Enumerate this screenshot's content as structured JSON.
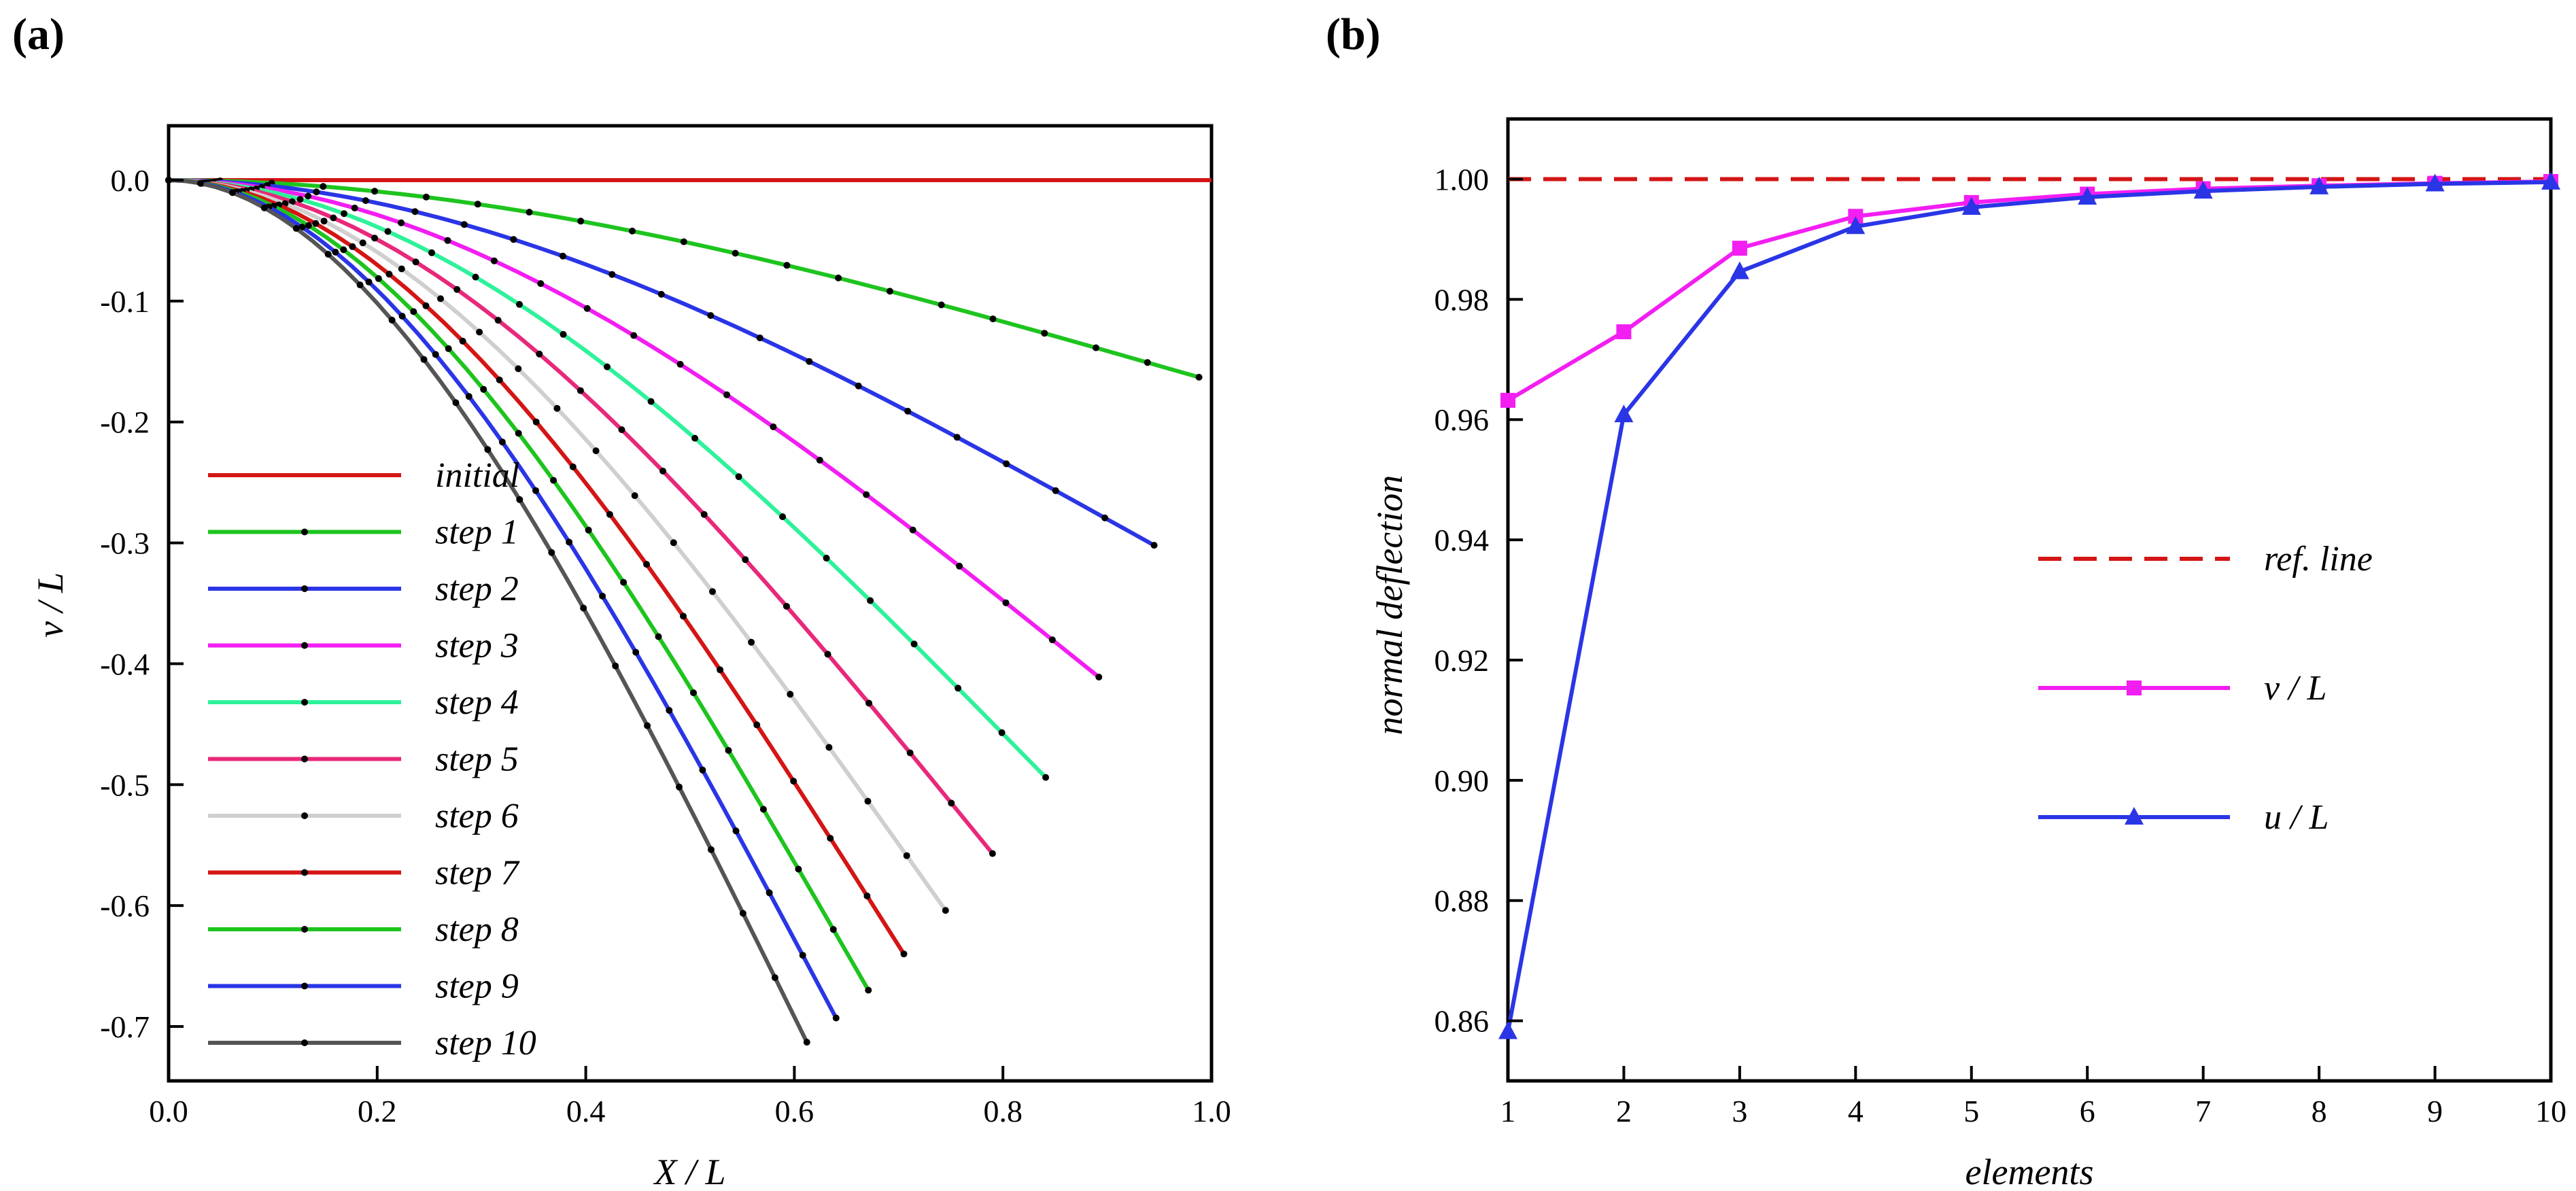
{
  "chart_data": [
    {
      "panel": "(a)",
      "type": "line",
      "xlabel": "X / L",
      "ylabel": "v / L",
      "xlim": [
        0.0,
        1.0
      ],
      "ylim": [
        -0.745,
        0.045
      ],
      "xticks": [
        "0.0",
        "0.2",
        "0.4",
        "0.6",
        "0.8",
        "1.0"
      ],
      "yticks": [
        "0.0",
        "-0.1",
        "-0.2",
        "-0.3",
        "-0.4",
        "-0.5",
        "-0.6",
        "-0.7"
      ],
      "legend_position": "bottom-left",
      "series": [
        {
          "name": "initial",
          "color": "#d41515",
          "markers": false,
          "end": [
            1.0,
            0.0
          ]
        },
        {
          "name": "step 1",
          "color": "#1ec41e",
          "markers": true,
          "end": [
            0.988,
            -0.163
          ]
        },
        {
          "name": "step 2",
          "color": "#2a35e6",
          "markers": true,
          "end": [
            0.945,
            -0.302
          ]
        },
        {
          "name": "step 3",
          "color": "#f21ef2",
          "markers": true,
          "end": [
            0.892,
            -0.411
          ]
        },
        {
          "name": "step 4",
          "color": "#2ef29a",
          "markers": true,
          "end": [
            0.841,
            -0.494
          ]
        },
        {
          "name": "step 5",
          "color": "#e8287a",
          "markers": true,
          "end": [
            0.79,
            -0.557
          ]
        },
        {
          "name": "step 6",
          "color": "#cfcfcf",
          "markers": true,
          "end": [
            0.745,
            -0.604
          ]
        },
        {
          "name": "step 7",
          "color": "#d41515",
          "markers": true,
          "end": [
            0.705,
            -0.64
          ]
        },
        {
          "name": "step 8",
          "color": "#1ec41e",
          "markers": true,
          "end": [
            0.671,
            -0.67
          ]
        },
        {
          "name": "step 9",
          "color": "#2a35e6",
          "markers": true,
          "end": [
            0.64,
            -0.693
          ]
        },
        {
          "name": "step 10",
          "color": "#555555",
          "markers": true,
          "end": [
            0.612,
            -0.713
          ]
        }
      ]
    },
    {
      "panel": "(b)",
      "type": "line",
      "xlabel": "elements",
      "ylabel": "normal deflection",
      "xlim": [
        1,
        10
      ],
      "ylim": [
        0.85,
        1.01
      ],
      "xticks": [
        "1",
        "2",
        "3",
        "4",
        "5",
        "6",
        "7",
        "8",
        "9",
        "10"
      ],
      "yticks": [
        "0.86",
        "0.88",
        "0.90",
        "0.92",
        "0.94",
        "0.96",
        "0.98",
        "1.00"
      ],
      "legend_position": "center-right",
      "x": [
        1,
        2,
        3,
        4,
        5,
        6,
        7,
        8,
        9,
        10
      ],
      "reference": {
        "name": "ref. line",
        "value": 1.0,
        "color": "#d41515"
      },
      "series": [
        {
          "name": "v / L",
          "color": "#f21ef2",
          "marker": "square",
          "values": [
            0.9632,
            0.9746,
            0.9885,
            0.9938,
            0.9961,
            0.9975,
            0.9984,
            0.9989,
            0.9993,
            0.9996
          ]
        },
        {
          "name": "u / L",
          "color": "#2a35e6",
          "marker": "triangle",
          "values": [
            0.8582,
            0.9608,
            0.9846,
            0.9921,
            0.9953,
            0.997,
            0.998,
            0.9987,
            0.9992,
            0.9995
          ]
        }
      ]
    }
  ]
}
